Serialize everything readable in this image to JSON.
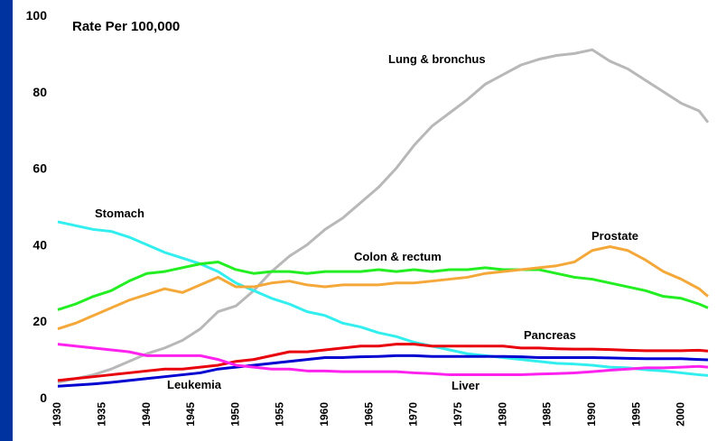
{
  "chart_data": {
    "type": "line",
    "title": "Rate Per 100,000",
    "x": [
      1930,
      1932,
      1934,
      1936,
      1938,
      1940,
      1942,
      1944,
      1946,
      1948,
      1950,
      1952,
      1954,
      1956,
      1958,
      1960,
      1962,
      1964,
      1966,
      1968,
      1970,
      1972,
      1974,
      1976,
      1978,
      1980,
      1982,
      1984,
      1986,
      1988,
      1990,
      1992,
      1994,
      1996,
      1998,
      2000,
      2002,
      2003
    ],
    "xlim": [
      1930,
      2003
    ],
    "xticks": [
      1930,
      1935,
      1940,
      1945,
      1950,
      1955,
      1960,
      1965,
      1970,
      1975,
      1980,
      1985,
      1990,
      1995,
      2000
    ],
    "ylim": [
      0,
      100
    ],
    "yticks": [
      0,
      20,
      40,
      60,
      80,
      100
    ],
    "grid": false,
    "series": [
      {
        "name": "Lung & bronchus",
        "color": "#b8b8b8",
        "values": [
          4,
          5,
          6,
          7.5,
          9.5,
          11.5,
          13,
          15,
          18,
          22.5,
          24,
          28,
          33,
          37,
          40,
          44,
          47,
          51,
          55,
          60,
          66,
          71,
          74.5,
          78,
          82,
          84.5,
          87,
          88.5,
          89.5,
          90,
          91,
          88,
          86,
          83,
          80,
          77,
          75,
          72
        ]
      },
      {
        "name": "Stomach",
        "color": "#33eeee",
        "values": [
          46,
          45,
          44,
          43.5,
          42,
          40,
          38,
          36.5,
          35,
          33,
          30,
          28,
          26,
          24.5,
          22.5,
          21.5,
          19.5,
          18.5,
          17,
          16,
          14.5,
          13.5,
          12.5,
          11.5,
          11,
          10.5,
          10,
          9.5,
          9,
          8.8,
          8.5,
          8,
          7.8,
          7.3,
          7,
          6.5,
          6,
          5.8
        ]
      },
      {
        "name": "Colon & rectum",
        "color": "#22ee22",
        "values": [
          23,
          24.5,
          26.5,
          28,
          30.5,
          32.5,
          33,
          34,
          35,
          35.5,
          33.5,
          32.5,
          33,
          33,
          32.5,
          33,
          33,
          33,
          33.5,
          33,
          33.5,
          33,
          33.5,
          33.5,
          34,
          33.5,
          33.5,
          33.5,
          32.5,
          31.5,
          31,
          30,
          29,
          28,
          26.5,
          26,
          24.5,
          23.5
        ]
      },
      {
        "name": "Prostate",
        "color": "#f5a83a",
        "values": [
          18,
          19.5,
          21.5,
          23.5,
          25.5,
          27,
          28.5,
          27.5,
          29.5,
          31.5,
          29,
          29,
          30,
          30.5,
          29.5,
          29,
          29.5,
          29.5,
          29.5,
          30,
          30,
          30.5,
          31,
          31.5,
          32.5,
          33,
          33.5,
          34,
          34.5,
          35.5,
          38.5,
          39.5,
          38.5,
          36,
          33,
          31,
          28.5,
          26.5
        ]
      },
      {
        "name": "Pancreas",
        "color": "#e8000b",
        "values": [
          4.5,
          5,
          5.5,
          6,
          6.5,
          7,
          7.5,
          7.5,
          8,
          8.5,
          9.5,
          10,
          11,
          12,
          12,
          12.5,
          13,
          13.5,
          13.5,
          14,
          14,
          13.5,
          13.5,
          13.5,
          13.5,
          13.5,
          13,
          13,
          12.8,
          12.7,
          12.7,
          12.6,
          12.4,
          12.3,
          12.3,
          12.3,
          12.4,
          12.2
        ]
      },
      {
        "name": "Leukemia",
        "color": "#0000d0",
        "values": [
          3,
          3.3,
          3.6,
          4,
          4.5,
          5,
          5.5,
          6,
          6.5,
          7.5,
          8,
          8.5,
          9,
          9.5,
          10,
          10.5,
          10.5,
          10.7,
          10.8,
          11,
          11,
          10.8,
          10.8,
          10.8,
          10.8,
          10.8,
          10.7,
          10.5,
          10.5,
          10.5,
          10.5,
          10.4,
          10.3,
          10.2,
          10.2,
          10.2,
          10,
          9.9
        ]
      },
      {
        "name": "Liver",
        "color": "#ff22ee",
        "values": [
          14,
          13.5,
          13,
          12.5,
          12,
          11,
          11,
          11,
          11,
          10,
          8.5,
          8,
          7.5,
          7.5,
          7,
          7,
          6.8,
          6.8,
          6.8,
          6.8,
          6.5,
          6.3,
          6,
          6,
          6,
          6,
          6,
          6.2,
          6.3,
          6.5,
          6.8,
          7.2,
          7.5,
          7.8,
          7.8,
          8,
          8.2,
          8
        ]
      }
    ]
  }
}
